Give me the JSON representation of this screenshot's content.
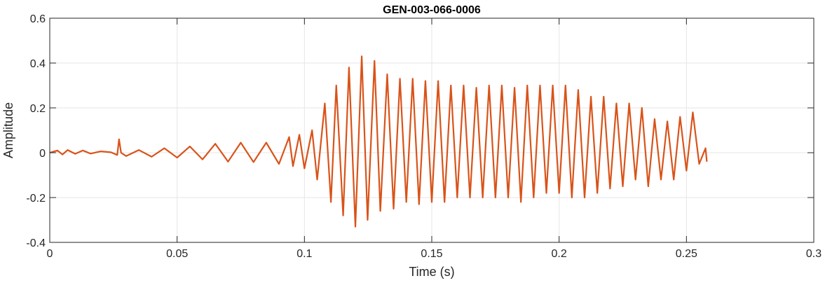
{
  "chart_data": {
    "type": "line",
    "title": "GEN-003-066-0006",
    "xlabel": "Time (s)",
    "ylabel": "Amplitude",
    "xlim": [
      0,
      0.3
    ],
    "ylim": [
      -0.4,
      0.6
    ],
    "xticks": [
      0,
      0.05,
      0.1,
      0.15,
      0.2,
      0.25,
      0.3
    ],
    "xtick_labels": [
      "0",
      "0.05",
      "0.1",
      "0.15",
      "0.2",
      "0.25",
      "0.3"
    ],
    "yticks": [
      -0.4,
      -0.2,
      0,
      0.2,
      0.4,
      0.6
    ],
    "ytick_labels": [
      "-0.4",
      "-0.2",
      "0",
      "0.2",
      "0.4",
      "0.6"
    ],
    "grid": true,
    "colors": {
      "line": "#D95319",
      "axes": "#262626",
      "grid": "#E6E6E6"
    },
    "series": [
      {
        "x": [
          0.0,
          0.003,
          0.005,
          0.007,
          0.01,
          0.013,
          0.016,
          0.02,
          0.024,
          0.0265,
          0.0272,
          0.028,
          0.03,
          0.035,
          0.04,
          0.045,
          0.05,
          0.055,
          0.06,
          0.065,
          0.07,
          0.075,
          0.08,
          0.085,
          0.09,
          0.094,
          0.0955,
          0.098,
          0.1,
          0.103,
          0.105,
          0.108,
          0.1104,
          0.1125,
          0.1152,
          0.1175,
          0.12,
          0.1225,
          0.1248,
          0.1275,
          0.1298,
          0.1325,
          0.135,
          0.1375,
          0.14,
          0.1425,
          0.145,
          0.1475,
          0.15,
          0.1525,
          0.155,
          0.1575,
          0.16,
          0.1625,
          0.165,
          0.1675,
          0.17,
          0.1725,
          0.175,
          0.1775,
          0.18,
          0.1825,
          0.185,
          0.1875,
          0.19,
          0.1925,
          0.195,
          0.1975,
          0.2,
          0.2025,
          0.205,
          0.2075,
          0.21,
          0.2125,
          0.215,
          0.2175,
          0.22,
          0.2225,
          0.225,
          0.2275,
          0.23,
          0.2325,
          0.235,
          0.2375,
          0.24,
          0.2425,
          0.245,
          0.2475,
          0.25,
          0.2525,
          0.255,
          0.2575,
          0.258
        ],
        "y": [
          0.0,
          0.01,
          -0.008,
          0.012,
          -0.005,
          0.01,
          -0.004,
          0.006,
          0.002,
          -0.01,
          0.06,
          0.0,
          -0.015,
          0.012,
          -0.018,
          0.02,
          -0.022,
          0.028,
          -0.03,
          0.04,
          -0.04,
          0.045,
          -0.042,
          0.045,
          -0.05,
          0.07,
          -0.06,
          0.08,
          -0.07,
          0.1,
          -0.12,
          0.22,
          -0.22,
          0.3,
          -0.28,
          0.38,
          -0.33,
          0.43,
          -0.3,
          0.41,
          -0.26,
          0.35,
          -0.25,
          0.33,
          -0.22,
          0.33,
          -0.23,
          0.32,
          -0.22,
          0.32,
          -0.22,
          0.3,
          -0.2,
          0.3,
          -0.2,
          0.29,
          -0.2,
          0.3,
          -0.2,
          0.3,
          -0.2,
          0.29,
          -0.22,
          0.3,
          -0.2,
          0.3,
          -0.18,
          0.3,
          -0.18,
          0.3,
          -0.2,
          0.28,
          -0.2,
          0.25,
          -0.18,
          0.25,
          -0.16,
          0.22,
          -0.15,
          0.22,
          -0.12,
          0.2,
          -0.15,
          0.15,
          -0.12,
          0.14,
          -0.12,
          0.16,
          -0.08,
          0.18,
          -0.05,
          0.02,
          -0.04
        ]
      }
    ]
  }
}
